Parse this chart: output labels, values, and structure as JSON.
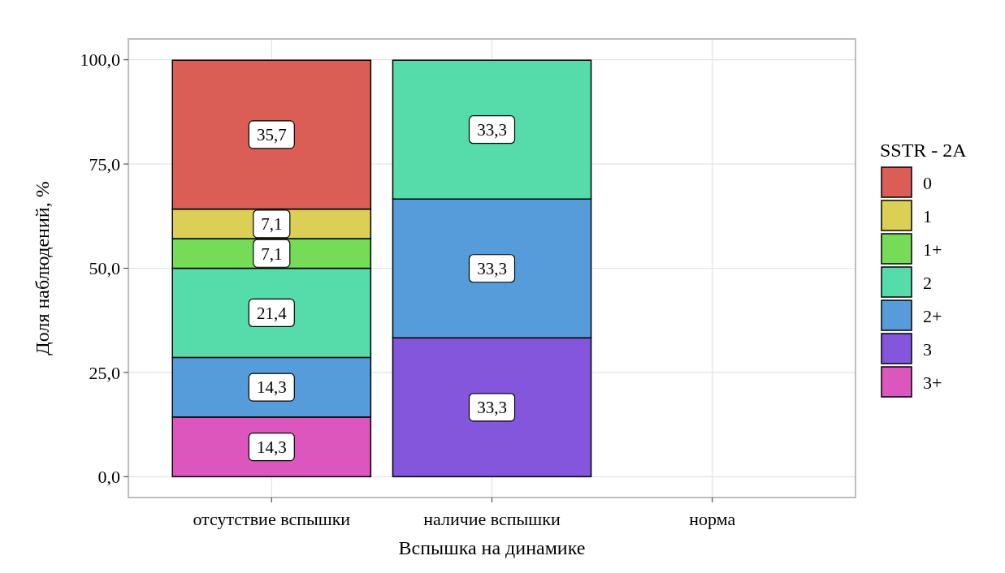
{
  "chart_data": {
    "type": "bar",
    "stacked": true,
    "xlabel": "Вспышка на динамике",
    "ylabel": "Доля наблюдений, %",
    "legend_title": "SSTR - 2A",
    "legend": "right",
    "grid": true,
    "categories": [
      "отсутствие вспышки",
      "наличие вспышки",
      "норма"
    ],
    "ylim": [
      -5,
      105
    ],
    "yticks": [
      {
        "value": 0,
        "label": "0,0"
      },
      {
        "value": 25,
        "label": "25,0"
      },
      {
        "value": 50,
        "label": "50,0"
      },
      {
        "value": 75,
        "label": "75,0"
      },
      {
        "value": 100,
        "label": "100,0"
      }
    ],
    "series": [
      {
        "name": "3+",
        "color": "#db56bd",
        "values": [
          14.3,
          null,
          null
        ],
        "value_labels": [
          "14,3",
          null,
          null
        ]
      },
      {
        "name": "3",
        "color": "#8356db",
        "values": [
          null,
          33.3,
          null
        ],
        "value_labels": [
          null,
          "33,3",
          null
        ]
      },
      {
        "name": "2+",
        "color": "#569cdb",
        "values": [
          14.3,
          33.3,
          null
        ],
        "value_labels": [
          "14,3",
          "33,3",
          null
        ]
      },
      {
        "name": "2",
        "color": "#56dbab",
        "values": [
          21.4,
          33.3,
          null
        ],
        "value_labels": [
          "21,4",
          "33,3",
          null
        ]
      },
      {
        "name": "1+",
        "color": "#76db56",
        "values": [
          7.1,
          null,
          null
        ],
        "value_labels": [
          "7,1",
          null,
          null
        ]
      },
      {
        "name": "1",
        "color": "#dbcf56",
        "values": [
          7.1,
          null,
          null
        ],
        "value_labels": [
          "7,1",
          null,
          null
        ]
      },
      {
        "name": "0",
        "color": "#db5e56",
        "values": [
          35.7,
          null,
          null
        ],
        "value_labels": [
          "35,7",
          null,
          null
        ]
      }
    ]
  }
}
